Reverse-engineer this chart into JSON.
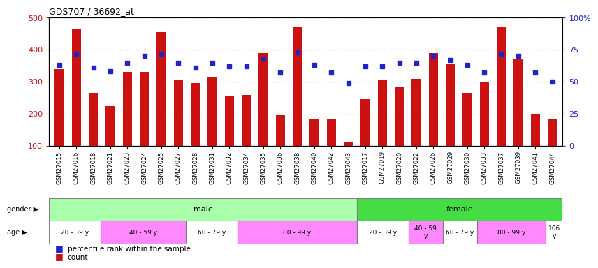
{
  "title": "GDS707 / 36692_at",
  "samples": [
    "GSM27015",
    "GSM27016",
    "GSM27018",
    "GSM27021",
    "GSM27023",
    "GSM27024",
    "GSM27025",
    "GSM27027",
    "GSM27028",
    "GSM27031",
    "GSM27032",
    "GSM27034",
    "GSM27035",
    "GSM27036",
    "GSM27038",
    "GSM27040",
    "GSM27042",
    "GSM27043",
    "GSM27017",
    "GSM27019",
    "GSM27020",
    "GSM27022",
    "GSM27026",
    "GSM27029",
    "GSM27030",
    "GSM27033",
    "GSM27037",
    "GSM27039",
    "GSM27041",
    "GSM27044"
  ],
  "counts": [
    340,
    465,
    265,
    225,
    330,
    330,
    455,
    305,
    295,
    315,
    255,
    258,
    390,
    195,
    470,
    185,
    185,
    112,
    245,
    305,
    285,
    310,
    390,
    355,
    265,
    300,
    470,
    370,
    200,
    185
  ],
  "percentiles": [
    63,
    72,
    61,
    58,
    65,
    70,
    72,
    65,
    61,
    65,
    62,
    62,
    68,
    57,
    73,
    63,
    57,
    49,
    62,
    62,
    65,
    65,
    70,
    67,
    63,
    57,
    72,
    70,
    57,
    50
  ],
  "gender_groups": [
    {
      "label": "male",
      "start": 0,
      "end": 18,
      "color": "#AAFFAA"
    },
    {
      "label": "female",
      "start": 18,
      "end": 30,
      "color": "#44DD44"
    }
  ],
  "age_groups": [
    {
      "label": "20 - 39 y",
      "start": 0,
      "end": 3,
      "color": "#FFFFFF"
    },
    {
      "label": "40 - 59 y",
      "start": 3,
      "end": 8,
      "color": "#FF88FF"
    },
    {
      "label": "60 - 79 y",
      "start": 8,
      "end": 11,
      "color": "#FFFFFF"
    },
    {
      "label": "80 - 99 y",
      "start": 11,
      "end": 18,
      "color": "#FF88FF"
    },
    {
      "label": "20 - 39 y",
      "start": 18,
      "end": 21,
      "color": "#FFFFFF"
    },
    {
      "label": "40 - 59\ny",
      "start": 21,
      "end": 23,
      "color": "#FF88FF"
    },
    {
      "label": "60 - 79 y",
      "start": 23,
      "end": 25,
      "color": "#FFFFFF"
    },
    {
      "label": "80 - 99 y",
      "start": 25,
      "end": 29,
      "color": "#FF88FF"
    },
    {
      "label": "106\ny",
      "start": 29,
      "end": 30,
      "color": "#FFFFFF"
    }
  ],
  "bar_color": "#CC1111",
  "dot_color": "#2222CC",
  "ylim_left": [
    100,
    500
  ],
  "ylim_right": [
    0,
    100
  ],
  "yticks_left": [
    100,
    200,
    300,
    400,
    500
  ],
  "yticks_right": [
    0,
    25,
    50,
    75,
    100
  ],
  "yticklabels_right": [
    "0",
    "25",
    "50",
    "75",
    "100%"
  ],
  "yticklabels_left": [
    "100",
    "200",
    "300",
    "400",
    "500"
  ]
}
